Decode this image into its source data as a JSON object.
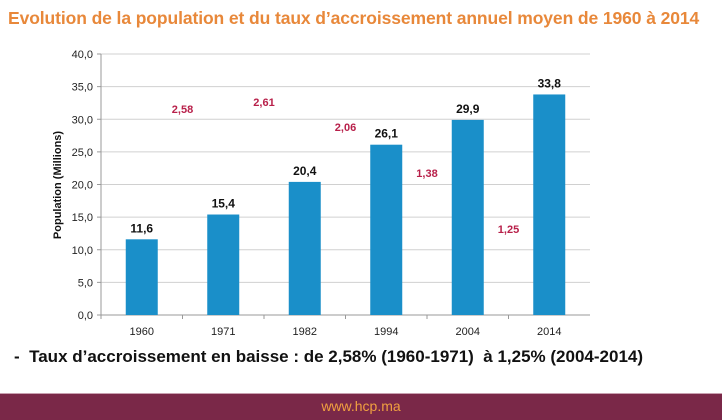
{
  "title": "Evolution de la population et du taux d’accroissement annuel moyen de 1960 à 2014",
  "note": "-  Taux d’accroissement en baisse : de 2,58% (1960-1971)  à 1,25% (2004-2014)",
  "footer": "www.hcp.ma",
  "chart_data": {
    "type": "bar",
    "categories": [
      "1960",
      "1971",
      "1982",
      "1994",
      "2004",
      "2014"
    ],
    "values": [
      11.6,
      15.4,
      20.4,
      26.1,
      29.9,
      33.8
    ],
    "value_labels": [
      "11,6",
      "15,4",
      "20,4",
      "26,1",
      "29,9",
      "33,8"
    ],
    "ylabel": "Population (Millions)",
    "ylim": [
      0,
      40
    ],
    "yticks": [
      "0,0",
      "5,0",
      "10,0",
      "15,0",
      "20,0",
      "25,0",
      "30,0",
      "35,0",
      "40,0"
    ],
    "grid": true,
    "bar_color": "#1a8fc9",
    "annotations": {
      "color": "#b8204a",
      "values": [
        2.58,
        2.61,
        2.06,
        1.38,
        1.25
      ],
      "labels": [
        "2,58",
        "2,61",
        "2,06",
        "1,38",
        "1,25"
      ],
      "periods": [
        "1960-1971",
        "1971-1982",
        "1982-1994",
        "1994-2004",
        "2004-2014"
      ]
    }
  }
}
